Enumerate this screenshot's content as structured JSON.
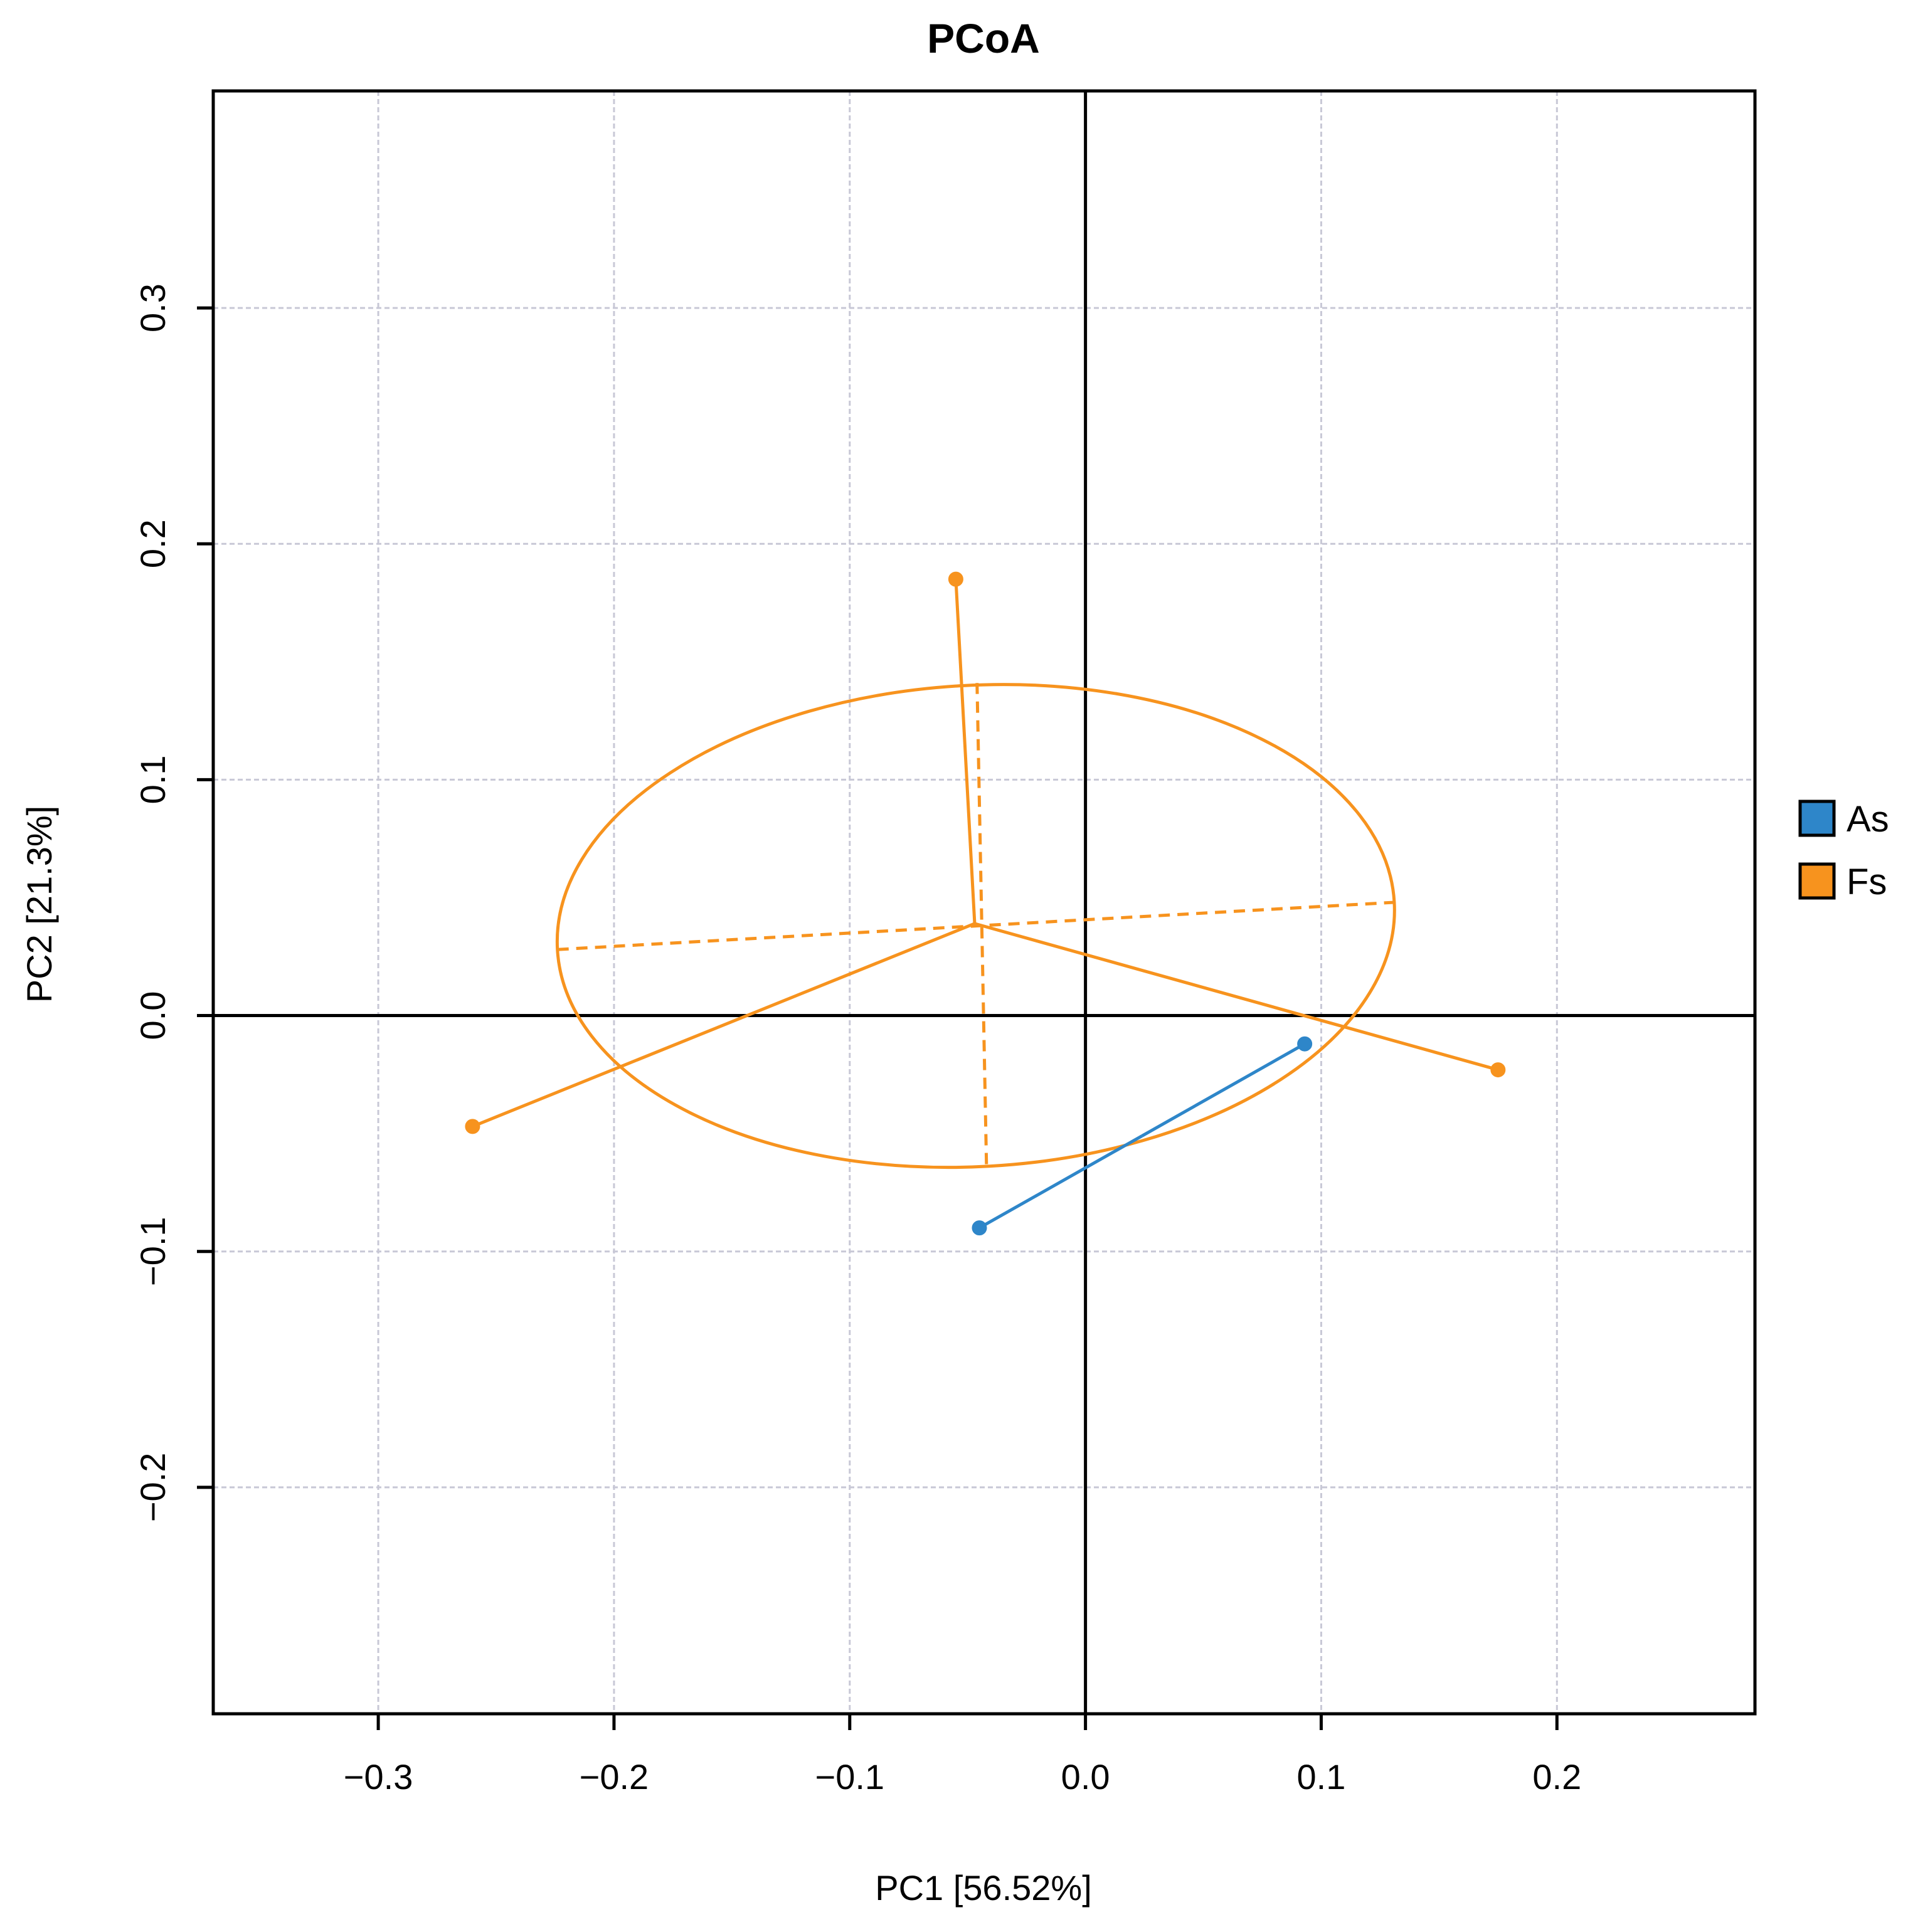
{
  "chart_data": {
    "type": "scatter",
    "title": "PCoA",
    "xlabel": "PC1  [56.52%]",
    "ylabel": "PC2  [21.3%]",
    "xlim": [
      -0.37,
      0.284
    ],
    "ylim": [
      -0.296,
      0.392
    ],
    "xticks": [
      -0.3,
      -0.2,
      -0.1,
      0.0,
      0.1,
      0.2
    ],
    "yticks": [
      -0.2,
      -0.1,
      0.0,
      0.1,
      0.2,
      0.3
    ],
    "xtick_labels": [
      "−0.3",
      "−0.2",
      "−0.1",
      "0.0",
      "0.1",
      "0.2"
    ],
    "ytick_labels": [
      "−0.2",
      "−0.1",
      "0.0",
      "0.1",
      "0.2",
      "0.3"
    ],
    "grid": true,
    "zero_lines": true,
    "legend_placement": "right",
    "series": [
      {
        "name": "As",
        "color": "#2e86c9",
        "centroid": [
          0.024,
          -0.051
        ],
        "points": [
          [
            -0.045,
            -0.09
          ],
          [
            0.093,
            -0.012
          ]
        ],
        "ellipse": null
      },
      {
        "name": "Fs",
        "color": "#f7931e",
        "centroid": [
          -0.047,
          0.039
        ],
        "points": [
          [
            -0.055,
            0.185
          ],
          [
            -0.26,
            -0.047
          ],
          [
            0.175,
            -0.023
          ]
        ],
        "ellipse": {
          "axis1": [
            [
              -0.224,
              0.028
            ],
            [
              0.131,
              0.048
            ]
          ],
          "axis2": [
            [
              -0.042,
              -0.063
            ],
            [
              -0.046,
              0.141
            ]
          ]
        }
      }
    ]
  }
}
